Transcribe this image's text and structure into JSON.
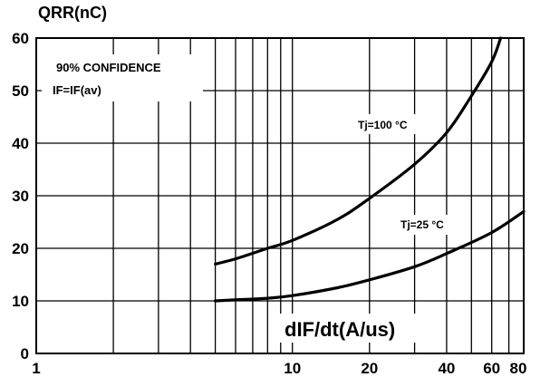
{
  "chart_data": {
    "type": "line",
    "title": "",
    "ylabel": "QRR(nC)",
    "xlabel": "dIF/dt(A/us)",
    "x_scale": "log",
    "xlim": [
      1,
      80
    ],
    "ylim": [
      0,
      60
    ],
    "grid": true,
    "x_tick_labels": [
      "1",
      "10",
      "20",
      "40",
      "60",
      "80"
    ],
    "y_tick_labels": [
      "0",
      "10",
      "20",
      "30",
      "40",
      "50",
      "60"
    ],
    "annotations": [
      "90% CONFIDENCE",
      "IF=IF(av)"
    ],
    "series": [
      {
        "name": "Tj=100 °C",
        "x": [
          5,
          6,
          8,
          10,
          15,
          20,
          30,
          40,
          50,
          60,
          65
        ],
        "y": [
          17,
          18,
          20,
          21.5,
          25.5,
          29.5,
          36,
          42,
          49,
          55.5,
          60
        ]
      },
      {
        "name": "Tj=25 °C",
        "x": [
          5,
          6,
          8,
          10,
          15,
          20,
          30,
          40,
          60,
          80
        ],
        "y": [
          10,
          10.2,
          10.5,
          11,
          12.5,
          14,
          16.5,
          19,
          23,
          27
        ]
      }
    ]
  }
}
